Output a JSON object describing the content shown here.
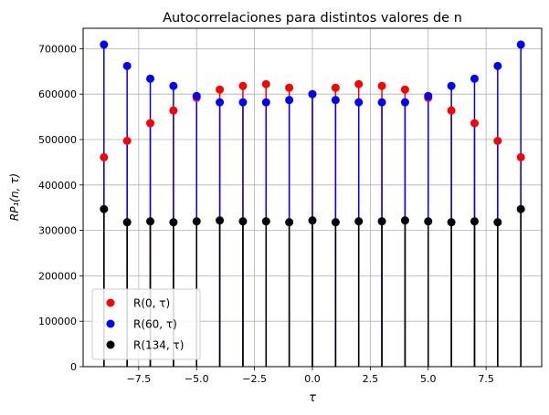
{
  "chart_data": {
    "type": "stem",
    "title": "Autocorrelaciones para distintos valores de n",
    "xlabel": "τ",
    "ylabel": "RP₁(n, τ)",
    "xlim": [
      -9.9,
      9.9
    ],
    "ylim": [
      0,
      745000
    ],
    "x_ticks": [
      -7.5,
      -5.0,
      -2.5,
      0.0,
      2.5,
      5.0,
      7.5
    ],
    "x_tick_labels": [
      "−7.5",
      "−5.0",
      "−2.5",
      "0.0",
      "2.5",
      "5.0",
      "7.5"
    ],
    "y_ticks": [
      0,
      100000,
      200000,
      300000,
      400000,
      500000,
      600000,
      700000
    ],
    "y_tick_labels": [
      "0",
      "100000",
      "200000",
      "300000",
      "400000",
      "500000",
      "600000",
      "700000"
    ],
    "grid": true,
    "legend_position": "lower-left",
    "x": [
      -9,
      -8,
      -7,
      -6,
      -5,
      -4,
      -3,
      -2,
      -1,
      0,
      1,
      2,
      3,
      4,
      5,
      6,
      7,
      8,
      9
    ],
    "series": [
      {
        "name": "R(0, τ)",
        "color": "#ff0000",
        "values": [
          461000,
          497000,
          536000,
          564000,
          592000,
          610000,
          618000,
          622000,
          614000,
          600000,
          614000,
          622000,
          618000,
          610000,
          592000,
          564000,
          536000,
          497000,
          461000
        ]
      },
      {
        "name": "R(60, τ)",
        "color": "#0000ff",
        "values": [
          709000,
          662000,
          634000,
          618000,
          596000,
          582000,
          582000,
          582000,
          587000,
          600000,
          587000,
          582000,
          582000,
          582000,
          596000,
          618000,
          634000,
          662000,
          709000
        ]
      },
      {
        "name": "R(134, τ)",
        "color": "#000000",
        "values": [
          347000,
          318000,
          320000,
          318000,
          320000,
          322000,
          320000,
          320000,
          318000,
          322000,
          318000,
          320000,
          320000,
          322000,
          320000,
          318000,
          320000,
          318000,
          347000
        ]
      }
    ]
  }
}
